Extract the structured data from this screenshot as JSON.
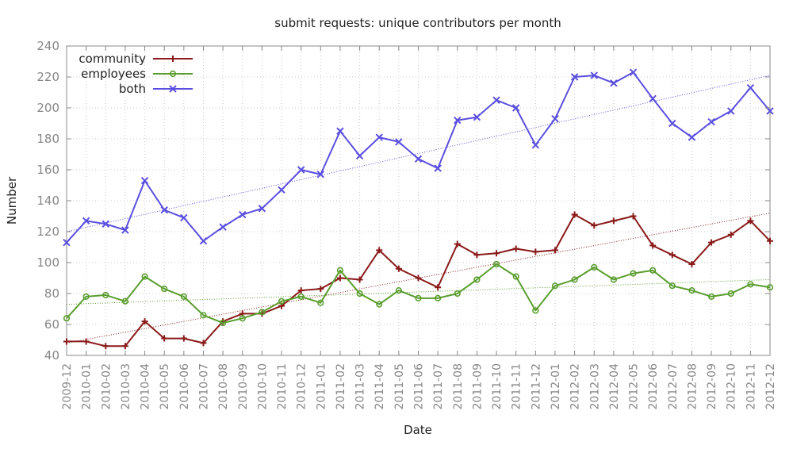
{
  "chart_data": {
    "type": "line",
    "title": "submit requests: unique contributors per month",
    "xlabel": "Date",
    "ylabel": "Number",
    "ylim": [
      40,
      240
    ],
    "yticks": [
      40,
      60,
      80,
      100,
      120,
      140,
      160,
      180,
      200,
      220,
      240
    ],
    "grid": true,
    "legend_position": "top-left",
    "categories": [
      "2009-12",
      "2010-01",
      "2010-02",
      "2010-03",
      "2010-04",
      "2010-05",
      "2010-06",
      "2010-07",
      "2010-08",
      "2010-09",
      "2010-10",
      "2010-11",
      "2010-12",
      "2011-01",
      "2011-02",
      "2011-03",
      "2011-04",
      "2011-05",
      "2011-06",
      "2011-07",
      "2011-08",
      "2011-09",
      "2011-10",
      "2011-11",
      "2011-12",
      "2012-01",
      "2012-02",
      "2012-03",
      "2012-04",
      "2012-05",
      "2012-06",
      "2012-07",
      "2012-08",
      "2012-09",
      "2012-10",
      "2012-11",
      "2012-12"
    ],
    "series": [
      {
        "name": "community",
        "color": "#8b1a1a",
        "marker": "plus",
        "values": [
          49,
          49,
          46,
          46,
          62,
          51,
          51,
          48,
          62,
          67,
          67,
          72,
          82,
          83,
          90,
          89,
          108,
          96,
          90,
          84,
          112,
          105,
          106,
          109,
          107,
          108,
          131,
          124,
          127,
          130,
          111,
          105,
          99,
          113,
          118,
          127,
          114
        ],
        "trend": [
          48,
          132
        ]
      },
      {
        "name": "employees",
        "color": "#5a9e2f",
        "marker": "circle",
        "values": [
          64,
          78,
          79,
          75,
          91,
          83,
          78,
          66,
          61,
          64,
          68,
          75,
          78,
          74,
          95,
          80,
          73,
          82,
          77,
          77,
          80,
          89,
          99,
          91,
          69,
          85,
          89,
          97,
          89,
          93,
          95,
          85,
          82,
          78,
          80,
          86,
          84
        ],
        "trend": [
          73,
          89
        ]
      },
      {
        "name": "both",
        "color": "#5b4fe0",
        "marker": "x",
        "values": [
          113,
          127,
          125,
          121,
          153,
          134,
          129,
          114,
          123,
          131,
          135,
          147,
          160,
          157,
          185,
          169,
          181,
          178,
          167,
          161,
          192,
          194,
          205,
          200,
          176,
          193,
          220,
          221,
          216,
          223,
          206,
          190,
          181,
          191,
          198,
          213,
          198
        ],
        "trend": [
          120,
          221
        ]
      }
    ]
  }
}
